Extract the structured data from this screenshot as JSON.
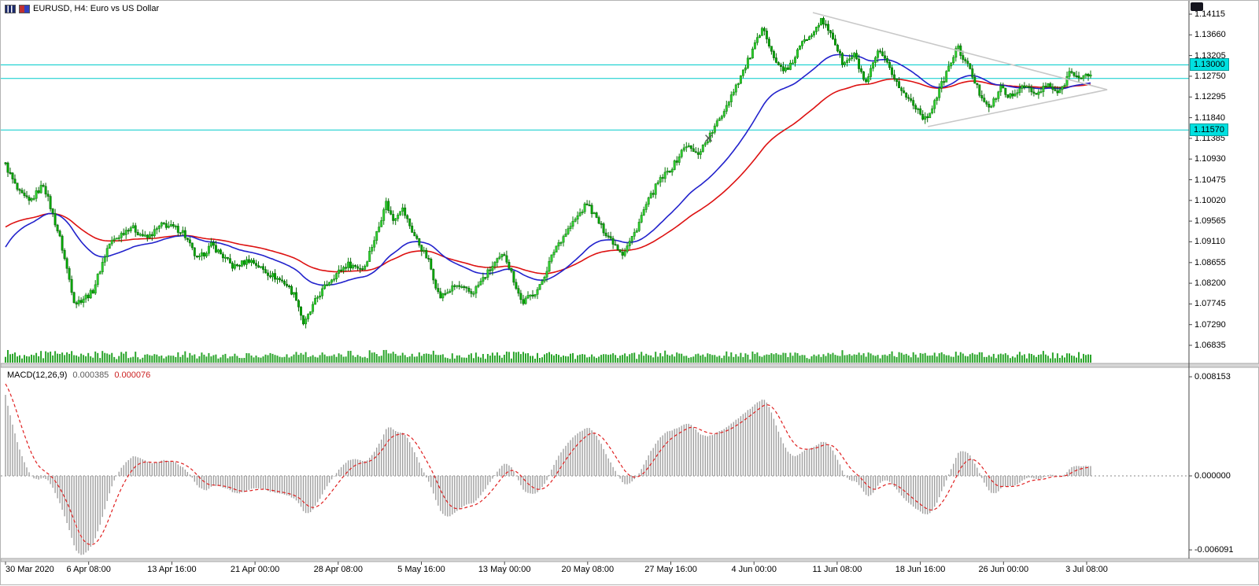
{
  "header": {
    "title": "EURUSD, H4:  Euro vs US Dollar"
  },
  "macd_panel": {
    "label": "MACD(12,26,9)",
    "value_main": "0.000385",
    "value_signal": "0.000076",
    "axis_labels": [
      "0.008153",
      "0.000000",
      "-0.006091"
    ]
  },
  "price_axis": {
    "labels": [
      "1.14115",
      "1.13660",
      "1.13205",
      "1.12750",
      "1.12295",
      "1.11840",
      "1.11385",
      "1.10930",
      "1.10475",
      "1.10020",
      "1.09565",
      "1.09110",
      "1.08655",
      "1.08200",
      "1.07745",
      "1.07290",
      "1.06835"
    ]
  },
  "time_axis": {
    "labels": [
      "30 Mar 2020",
      "6 Apr 08:00",
      "13 Apr 16:00",
      "21 Apr 00:00",
      "28 Apr 08:00",
      "5 May 16:00",
      "13 May 00:00",
      "20 May 08:00",
      "27 May 16:00",
      "4 Jun 00:00",
      "11 Jun 08:00",
      "18 Jun 16:00",
      "26 Jun 00:00",
      "3 Jul 08:00"
    ]
  },
  "hlines": [
    {
      "price": 1.13,
      "label": "1.13000",
      "badge": true
    },
    {
      "price": 1.127,
      "label": "",
      "badge": false
    },
    {
      "price": 1.1157,
      "label": "1.11570",
      "badge": true
    }
  ],
  "colors": {
    "bull": "#2fd12f",
    "bull_stroke": "#067806",
    "bear": "#00a800",
    "bear_stroke": "#056105",
    "ma_fast": "#2222cc",
    "ma_slow": "#dd1111",
    "hline": "#00cccc",
    "badge_bg": "#00e0e0",
    "macd_hist": "#a0a0a0",
    "macd_signal": "#e02020",
    "triangle": "#c8c8c8",
    "volume": "#2ba52b"
  },
  "chart_data": {
    "type": "candlestick",
    "symbol": "EURUSD",
    "timeframe": "H4",
    "title": "EURUSD, H4: Euro vs US Dollar",
    "n_candles": 460,
    "y_axis_range": [
      1.06403,
      1.14409
    ],
    "x_range": [
      "30 Mar 2020",
      "3 Jul 2020 08:00"
    ],
    "price_path_anchors": [
      [
        0.0,
        1.108
      ],
      [
        0.012,
        1.102
      ],
      [
        0.022,
        1.0998
      ],
      [
        0.035,
        1.1038
      ],
      [
        0.05,
        1.092
      ],
      [
        0.064,
        1.0775
      ],
      [
        0.08,
        1.08
      ],
      [
        0.095,
        1.0905
      ],
      [
        0.115,
        1.0945
      ],
      [
        0.13,
        1.0918
      ],
      [
        0.145,
        1.095
      ],
      [
        0.163,
        1.0935
      ],
      [
        0.177,
        1.087
      ],
      [
        0.19,
        1.0905
      ],
      [
        0.21,
        1.0855
      ],
      [
        0.225,
        1.0872
      ],
      [
        0.24,
        1.0845
      ],
      [
        0.258,
        1.082
      ],
      [
        0.268,
        1.0788
      ],
      [
        0.275,
        1.0728
      ],
      [
        0.287,
        1.0788
      ],
      [
        0.3,
        1.083
      ],
      [
        0.315,
        1.0862
      ],
      [
        0.33,
        1.0852
      ],
      [
        0.345,
        1.095
      ],
      [
        0.35,
        1.1002
      ],
      [
        0.357,
        1.0958
      ],
      [
        0.365,
        1.0988
      ],
      [
        0.376,
        1.0928
      ],
      [
        0.39,
        1.0868
      ],
      [
        0.4,
        1.0788
      ],
      [
        0.415,
        1.0815
      ],
      [
        0.43,
        1.0798
      ],
      [
        0.449,
        1.0858
      ],
      [
        0.46,
        1.0885
      ],
      [
        0.476,
        1.0776
      ],
      [
        0.492,
        1.081
      ],
      [
        0.507,
        1.09
      ],
      [
        0.536,
        1.0996
      ],
      [
        0.55,
        1.094
      ],
      [
        0.569,
        1.0885
      ],
      [
        0.58,
        1.0932
      ],
      [
        0.59,
        1.099
      ],
      [
        0.601,
        1.104
      ],
      [
        0.616,
        1.108
      ],
      [
        0.627,
        1.1125
      ],
      [
        0.637,
        1.1102
      ],
      [
        0.648,
        1.114
      ],
      [
        0.659,
        1.1185
      ],
      [
        0.67,
        1.124
      ],
      [
        0.681,
        1.1292
      ],
      [
        0.692,
        1.135
      ],
      [
        0.699,
        1.1382
      ],
      [
        0.71,
        1.1302
      ],
      [
        0.721,
        1.1286
      ],
      [
        0.732,
        1.134
      ],
      [
        0.743,
        1.1372
      ],
      [
        0.751,
        1.1398
      ],
      [
        0.761,
        1.137
      ],
      [
        0.772,
        1.13
      ],
      [
        0.782,
        1.1322
      ],
      [
        0.793,
        1.1256
      ],
      [
        0.804,
        1.133
      ],
      [
        0.815,
        1.1292
      ],
      [
        0.826,
        1.124
      ],
      [
        0.837,
        1.1215
      ],
      [
        0.848,
        1.1178
      ],
      [
        0.858,
        1.123
      ],
      [
        0.869,
        1.1292
      ],
      [
        0.877,
        1.134
      ],
      [
        0.888,
        1.1292
      ],
      [
        0.898,
        1.1236
      ],
      [
        0.908,
        1.1206
      ],
      [
        0.917,
        1.125
      ],
      [
        0.928,
        1.1226
      ],
      [
        0.938,
        1.126
      ],
      [
        0.949,
        1.1232
      ],
      [
        0.96,
        1.1256
      ],
      [
        0.971,
        1.1236
      ],
      [
        0.982,
        1.1292
      ],
      [
        0.99,
        1.1266
      ],
      [
        1.0,
        1.1282
      ]
    ],
    "indicators": [
      {
        "name": "MA fast",
        "type": "EMA",
        "period": 40,
        "seed": 1.089,
        "color": "#2222cc"
      },
      {
        "name": "MA slow",
        "type": "EMA",
        "period": 80,
        "seed": 1.094,
        "color": "#dd1111"
      },
      {
        "name": "MACD",
        "fast": 12,
        "slow": 26,
        "signal": 9,
        "current_macd": 0.000385,
        "current_signal": 7.6e-05
      }
    ],
    "objects": {
      "triangle_upper": [
        [
          0.744,
          1.1415
        ],
        [
          1.0153,
          1.12455
        ]
      ],
      "triangle_lower": [
        [
          0.85,
          1.11643
        ],
        [
          1.0153,
          1.12455
        ]
      ],
      "marker": {
        "t": 0.648,
        "price": 1.1139
      }
    }
  }
}
